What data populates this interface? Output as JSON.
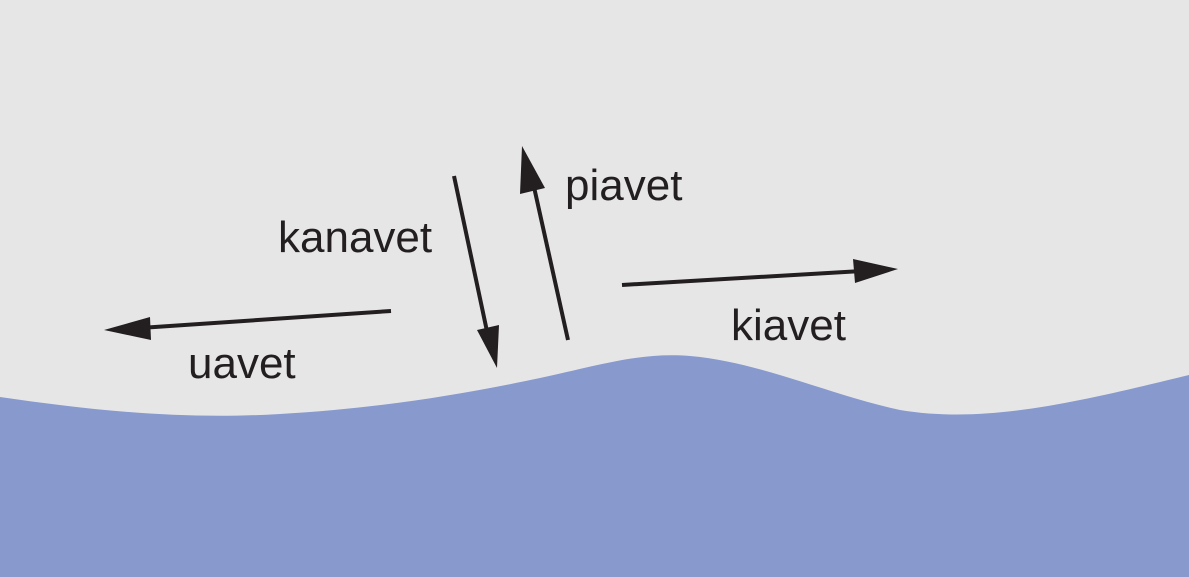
{
  "colors": {
    "background": "#e6e6e6",
    "water": "#8799cd",
    "arrow": "#231f20",
    "text": "#231f20"
  },
  "labels": {
    "kanavet": "kanavet",
    "piavet": "piavet",
    "kiavet": "kiavet",
    "uavet": "uavet"
  }
}
